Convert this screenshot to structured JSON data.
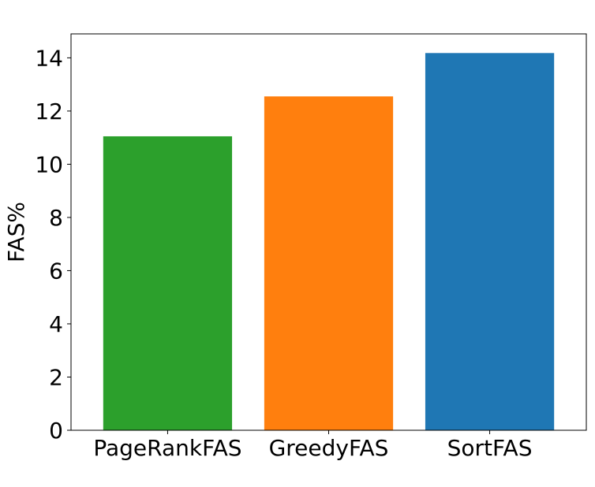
{
  "chart_data": {
    "type": "bar",
    "title": "",
    "xlabel": "",
    "ylabel": "FAS%",
    "categories": [
      "PageRankFAS",
      "GreedyFAS",
      "SortFAS"
    ],
    "values": [
      11.05,
      12.55,
      14.18
    ],
    "colors": [
      "#2ca02c",
      "#ff7f0e",
      "#1f77b4"
    ],
    "ylim": [
      0,
      14.9
    ],
    "yticks": [
      0,
      2,
      4,
      6,
      8,
      10,
      12,
      14
    ],
    "grid": false,
    "legend": "none"
  }
}
